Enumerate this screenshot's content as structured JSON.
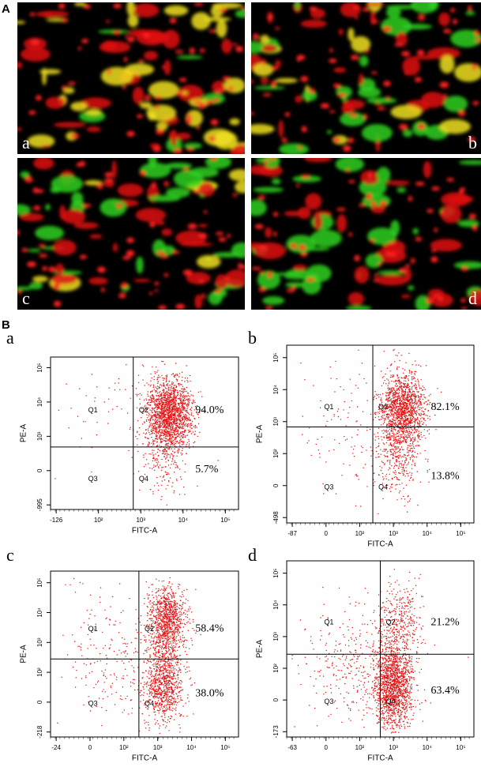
{
  "panel_a": {
    "label": "A",
    "images": [
      "a",
      "b",
      "c",
      "d"
    ]
  },
  "panel_b": {
    "label": "B",
    "plots": [
      {
        "label": "a",
        "y_axis_label": "PE-A",
        "x_axis_label": "FITC-A",
        "x_ticks": [
          "-126",
          "10²",
          "10³",
          "10⁴",
          "10⁵"
        ],
        "y_ticks": [
          "-995",
          "0",
          "10³",
          "10⁴",
          "10⁵"
        ],
        "quadrants": [
          "Q1",
          "Q2",
          "Q3",
          "Q4"
        ],
        "percent_upper": "94.0%",
        "percent_lower": "5.7%"
      },
      {
        "label": "b",
        "y_axis_label": "PE-A",
        "x_axis_label": "FITC-A",
        "x_ticks": [
          "-87",
          "0",
          "10²",
          "10³",
          "10⁴",
          "10⁵"
        ],
        "y_ticks": [
          "-498",
          "0",
          "10²",
          "10³",
          "10⁴",
          "10⁵"
        ],
        "quadrants": [
          "Q1",
          "Q2",
          "Q3",
          "Q4"
        ],
        "percent_upper": "82.1%",
        "percent_lower": "13.8%"
      },
      {
        "label": "c",
        "y_axis_label": "PE-A",
        "x_axis_label": "FITC-A",
        "x_ticks": [
          "-24",
          "0",
          "10²",
          "10³",
          "10⁴",
          "10⁵"
        ],
        "y_ticks": [
          "-218",
          "0",
          "10²",
          "10³",
          "10⁴",
          "10⁵"
        ],
        "quadrants": [
          "Q1",
          "Q2",
          "Q3",
          "Q4"
        ],
        "percent_upper": "58.4%",
        "percent_lower": "38.0%"
      },
      {
        "label": "d",
        "y_axis_label": "PE-A",
        "x_axis_label": "FITC-A",
        "x_ticks": [
          "-63",
          "0",
          "10²",
          "10³",
          "10⁴",
          "10⁵"
        ],
        "y_ticks": [
          "-173",
          "0",
          "10²",
          "10³",
          "10⁴",
          "10⁵"
        ],
        "quadrants": [
          "Q1",
          "Q2",
          "Q3",
          "Q4"
        ],
        "percent_upper": "21.2%",
        "percent_lower": "63.4%"
      }
    ]
  }
}
